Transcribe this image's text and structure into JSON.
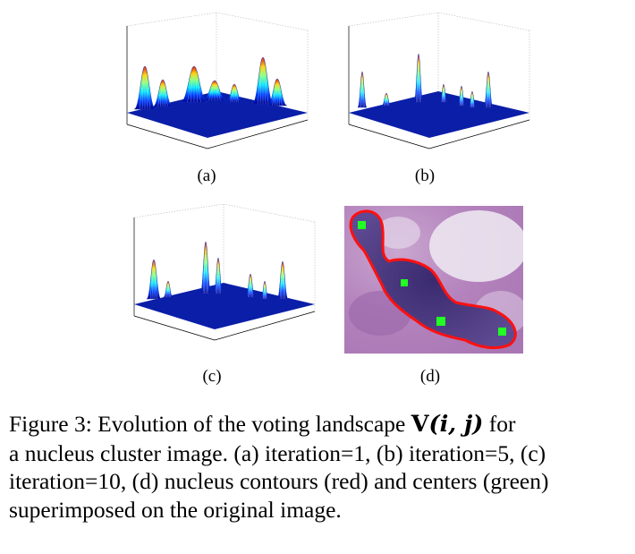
{
  "panels": [
    {
      "id": "a",
      "label": "(a)",
      "kind": "surface-plot",
      "peaks": "broad"
    },
    {
      "id": "b",
      "label": "(b)",
      "kind": "surface-plot",
      "peaks": "sharp"
    },
    {
      "id": "c",
      "label": "(c)",
      "kind": "surface-plot",
      "peaks": "sharp"
    },
    {
      "id": "d",
      "label": "(d)",
      "kind": "microscopy-image",
      "contour_color": "#ff1010",
      "center_color": "#22ff22"
    }
  ],
  "caption": {
    "prefix": "Figure 3: Evolution of the voting landscape ",
    "math_bold": "V",
    "math_args": "(i, j)",
    "line1_suffix": " for",
    "rest": "a nucleus cluster image. (a) iteration=1, (b) iteration=5, (c) iteration=10, (d) nucleus contours (red) and centers (green) superimposed on the original image."
  }
}
